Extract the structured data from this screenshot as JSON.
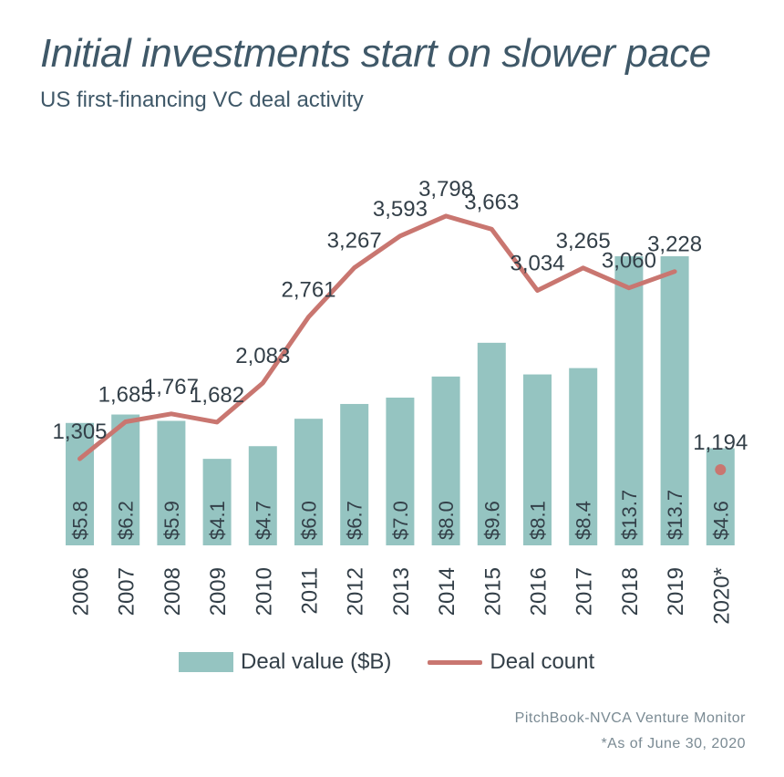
{
  "title": "Initial investments start on slower pace",
  "subtitle": "US first-financing VC deal activity",
  "legend": {
    "bar_label": "Deal value ($B)",
    "line_label": "Deal count"
  },
  "source": {
    "line1": "PitchBook-NVCA Venture Monitor",
    "line2": "*As of June 30, 2020"
  },
  "colors": {
    "bar": "#95c4c1",
    "line": "#c97670",
    "text": "#333f48",
    "title": "#3f5868"
  },
  "chart_data": {
    "type": "bar",
    "categories": [
      "2006",
      "2007",
      "2008",
      "2009",
      "2010",
      "2011",
      "2012",
      "2013",
      "2014",
      "2015",
      "2016",
      "2017",
      "2018",
      "2019",
      "2020*"
    ],
    "series": [
      {
        "name": "Deal value ($B)",
        "type": "bar",
        "values": [
          5.8,
          6.2,
          5.9,
          4.1,
          4.7,
          6.0,
          6.7,
          7.0,
          8.0,
          9.6,
          8.1,
          8.4,
          13.7,
          13.7,
          4.6
        ],
        "labels": [
          "$5.8",
          "$6.2",
          "$5.9",
          "$4.1",
          "$4.7",
          "$6.0",
          "$6.7",
          "$7.0",
          "$8.0",
          "$9.6",
          "$8.1",
          "$8.4",
          "$13.7",
          "$13.7",
          "$4.6"
        ]
      },
      {
        "name": "Deal count",
        "type": "line",
        "values": [
          1305,
          1685,
          1767,
          1682,
          2083,
          2761,
          3267,
          3593,
          3798,
          3663,
          3034,
          3265,
          3060,
          3228,
          1194
        ],
        "labels": [
          "1,305",
          "1,685",
          "1,767",
          "1,682",
          "2,083",
          "2,761",
          "3,267",
          "3,593",
          "3,798",
          "3,663",
          "3,034",
          "3,265",
          "3,060",
          "3,228",
          "1,194"
        ],
        "point_only_last": true
      }
    ],
    "legend_position": "bottom",
    "grid": false
  }
}
